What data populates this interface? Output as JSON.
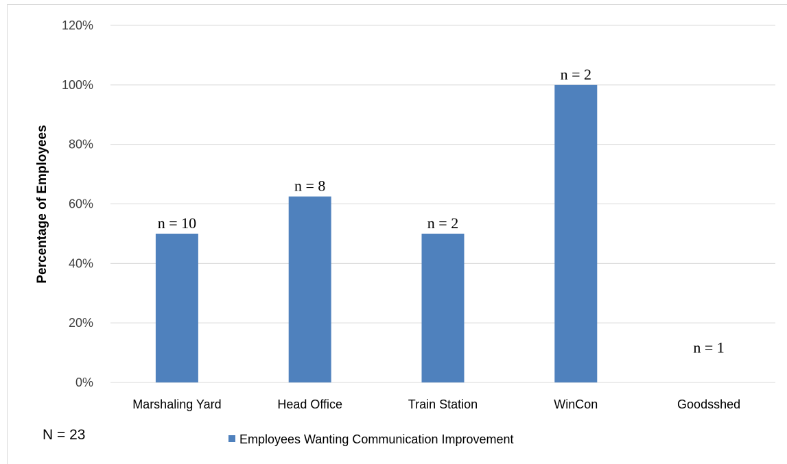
{
  "chart_data": {
    "type": "bar",
    "categories": [
      "Marshaling Yard",
      "Head Office",
      "Train Station",
      "WinCon",
      "Goodsshed"
    ],
    "series": [
      {
        "name": "Employees Wanting Communication Improvement",
        "values": [
          50,
          62.5,
          50,
          100,
          0
        ],
        "color": "#4f81bd"
      }
    ],
    "data_labels": [
      "n = 10",
      "n = 8",
      "n = 2",
      "n = 2",
      "n = 1"
    ],
    "ylabel": "Percentage of Employees",
    "xlabel": "",
    "ylim": [
      0,
      120
    ],
    "yticks": [
      0,
      20,
      40,
      60,
      80,
      100,
      120
    ],
    "ytick_labels": [
      "0%",
      "20%",
      "40%",
      "60%",
      "80%",
      "100%",
      "120%"
    ],
    "grid": true,
    "legend_position": "bottom",
    "annotation": "N = 23"
  }
}
